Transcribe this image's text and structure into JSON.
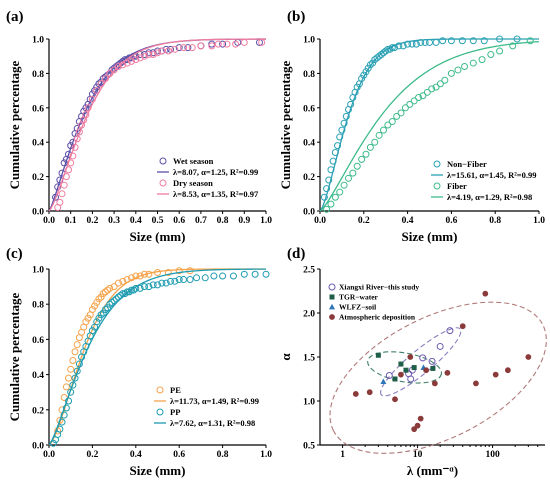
{
  "chart_data": [
    {
      "id": "a",
      "type": "scatter",
      "panel_label": "(a)",
      "xlabel": "Size (mm)",
      "ylabel": "Cumulative percentage",
      "xlim": [
        0,
        1.0
      ],
      "ylim": [
        0,
        1.0
      ],
      "xticks": [
        "0.0",
        "0.1",
        "0.2",
        "0.3",
        "0.4",
        "0.5",
        "0.6",
        "0.7",
        "0.8",
        "0.9",
        "1.0"
      ],
      "yticks": [
        "0.0",
        "0.2",
        "0.4",
        "0.6",
        "0.8",
        "1.0"
      ],
      "legend_position": "bottom-right",
      "series": [
        {
          "name": "Wet season",
          "marker": "circle-open",
          "color": "#5b4fa8",
          "fit_label": "λ=8.07, α=1.25, R²=0.99",
          "lambda": 8.07,
          "alpha": 1.25,
          "x": [
            0.03,
            0.04,
            0.05,
            0.06,
            0.07,
            0.08,
            0.09,
            0.1,
            0.11,
            0.12,
            0.13,
            0.14,
            0.15,
            0.16,
            0.17,
            0.18,
            0.19,
            0.2,
            0.21,
            0.22,
            0.23,
            0.24,
            0.25,
            0.26,
            0.27,
            0.28,
            0.29,
            0.3,
            0.31,
            0.32,
            0.33,
            0.34,
            0.35,
            0.36,
            0.37,
            0.38,
            0.39,
            0.4,
            0.42,
            0.44,
            0.46,
            0.48,
            0.5,
            0.52,
            0.54,
            0.56,
            0.6,
            0.64,
            0.7,
            0.75,
            0.8,
            0.87,
            0.97
          ],
          "y": [
            0.08,
            0.14,
            0.18,
            0.22,
            0.28,
            0.3,
            0.33,
            0.38,
            0.4,
            0.45,
            0.48,
            0.52,
            0.55,
            0.58,
            0.6,
            0.62,
            0.65,
            0.68,
            0.7,
            0.72,
            0.74,
            0.75,
            0.77,
            0.78,
            0.79,
            0.8,
            0.82,
            0.83,
            0.84,
            0.85,
            0.86,
            0.87,
            0.88,
            0.88,
            0.89,
            0.89,
            0.9,
            0.9,
            0.91,
            0.91,
            0.92,
            0.92,
            0.93,
            0.93,
            0.94,
            0.94,
            0.95,
            0.95,
            0.96,
            0.97,
            0.97,
            0.98,
            0.98
          ]
        },
        {
          "name": "Dry season",
          "marker": "circle-open",
          "color": "#f07ca0",
          "fit_label": "λ=8.53, α=1.35, R²=0.97",
          "lambda": 8.53,
          "alpha": 1.35,
          "x": [
            0.04,
            0.05,
            0.06,
            0.07,
            0.08,
            0.09,
            0.1,
            0.11,
            0.12,
            0.13,
            0.14,
            0.15,
            0.16,
            0.17,
            0.18,
            0.2,
            0.22,
            0.24,
            0.26,
            0.28,
            0.3,
            0.32,
            0.34,
            0.36,
            0.38,
            0.4,
            0.42,
            0.44,
            0.46,
            0.48,
            0.5,
            0.52,
            0.55,
            0.58,
            0.62,
            0.66,
            0.7,
            0.75,
            0.78,
            0.82,
            0.86,
            0.9,
            0.98
          ],
          "y": [
            0.02,
            0.05,
            0.1,
            0.15,
            0.2,
            0.24,
            0.28,
            0.32,
            0.37,
            0.42,
            0.46,
            0.5,
            0.53,
            0.56,
            0.6,
            0.65,
            0.7,
            0.74,
            0.77,
            0.8,
            0.82,
            0.84,
            0.85,
            0.86,
            0.87,
            0.88,
            0.89,
            0.9,
            0.91,
            0.91,
            0.92,
            0.93,
            0.93,
            0.94,
            0.95,
            0.95,
            0.96,
            0.96,
            0.97,
            0.97,
            0.97,
            0.98,
            0.98
          ]
        }
      ]
    },
    {
      "id": "b",
      "type": "scatter",
      "panel_label": "(b)",
      "xlabel": "Size (mm)",
      "ylabel": "Cumulative percentage",
      "xlim": [
        0,
        1.0
      ],
      "ylim": [
        0,
        1.0
      ],
      "xticks": [
        "0.0",
        "0.2",
        "0.4",
        "0.6",
        "0.8",
        "1.0"
      ],
      "yticks": [
        "0.0",
        "0.2",
        "0.4",
        "0.6",
        "0.8",
        "1.0"
      ],
      "legend_position": "bottom-right",
      "series": [
        {
          "name": "Non−Fiber",
          "marker": "circle-open",
          "color": "#2aa0b4",
          "fit_label": "λ=15.61, α=1.45, R²=0.99",
          "lambda": 15.61,
          "alpha": 1.45,
          "x": [
            0.02,
            0.03,
            0.04,
            0.05,
            0.06,
            0.07,
            0.08,
            0.09,
            0.1,
            0.11,
            0.12,
            0.13,
            0.14,
            0.15,
            0.16,
            0.17,
            0.18,
            0.19,
            0.2,
            0.21,
            0.22,
            0.23,
            0.24,
            0.25,
            0.26,
            0.27,
            0.28,
            0.29,
            0.3,
            0.31,
            0.32,
            0.33,
            0.34,
            0.36,
            0.38,
            0.4,
            0.42,
            0.44,
            0.46,
            0.48,
            0.5,
            0.53,
            0.56,
            0.6,
            0.65,
            0.7,
            0.75,
            0.82,
            0.9
          ],
          "y": [
            0.08,
            0.13,
            0.18,
            0.24,
            0.29,
            0.34,
            0.38,
            0.43,
            0.47,
            0.51,
            0.55,
            0.59,
            0.62,
            0.66,
            0.69,
            0.72,
            0.74,
            0.77,
            0.79,
            0.81,
            0.83,
            0.85,
            0.86,
            0.88,
            0.89,
            0.9,
            0.91,
            0.92,
            0.93,
            0.94,
            0.94,
            0.95,
            0.95,
            0.96,
            0.96,
            0.97,
            0.97,
            0.97,
            0.98,
            0.98,
            0.98,
            0.98,
            0.99,
            0.99,
            0.99,
            0.99,
            0.99,
            1.0,
            1.0
          ]
        },
        {
          "name": "Fiber",
          "marker": "circle-open",
          "color": "#3dbb8a",
          "fit_label": "λ=4.19, α=1.29, R²=0.98",
          "lambda": 4.19,
          "alpha": 1.29,
          "x": [
            0.03,
            0.05,
            0.07,
            0.09,
            0.11,
            0.13,
            0.15,
            0.17,
            0.19,
            0.21,
            0.23,
            0.25,
            0.27,
            0.29,
            0.31,
            0.33,
            0.35,
            0.37,
            0.39,
            0.41,
            0.43,
            0.45,
            0.47,
            0.49,
            0.51,
            0.53,
            0.55,
            0.57,
            0.6,
            0.63,
            0.66,
            0.7,
            0.74,
            0.78,
            0.82,
            0.88,
            0.96
          ],
          "y": [
            0.01,
            0.04,
            0.08,
            0.11,
            0.15,
            0.19,
            0.22,
            0.26,
            0.3,
            0.33,
            0.37,
            0.4,
            0.44,
            0.47,
            0.5,
            0.52,
            0.55,
            0.57,
            0.6,
            0.62,
            0.64,
            0.66,
            0.67,
            0.69,
            0.71,
            0.72,
            0.74,
            0.76,
            0.8,
            0.82,
            0.84,
            0.86,
            0.88,
            0.91,
            0.93,
            0.96,
            0.99
          ]
        }
      ]
    },
    {
      "id": "c",
      "type": "scatter",
      "panel_label": "(c)",
      "xlabel": "Size (mm)",
      "ylabel": "Cumulative percentage",
      "xlim": [
        0,
        1.0
      ],
      "ylim": [
        0,
        1.0
      ],
      "xticks": [
        "0.0",
        "0.2",
        "0.4",
        "0.6",
        "0.8",
        "1.0"
      ],
      "yticks": [
        "0.0",
        "0.2",
        "0.4",
        "0.6",
        "0.8",
        "1.0"
      ],
      "legend_position": "bottom-right",
      "series": [
        {
          "name": "PE",
          "marker": "circle-open",
          "color": "#f5a34a",
          "fit_label": "λ=11.73, α=1.49, R²=0.99",
          "lambda": 11.73,
          "alpha": 1.49,
          "x": [
            0.04,
            0.05,
            0.06,
            0.07,
            0.08,
            0.09,
            0.1,
            0.11,
            0.12,
            0.13,
            0.14,
            0.15,
            0.16,
            0.17,
            0.18,
            0.19,
            0.2,
            0.21,
            0.22,
            0.23,
            0.24,
            0.25,
            0.26,
            0.27,
            0.28,
            0.3,
            0.32,
            0.34,
            0.36,
            0.38,
            0.4,
            0.42,
            0.44,
            0.46,
            0.5,
            0.55,
            0.6,
            0.65
          ],
          "y": [
            0.08,
            0.14,
            0.2,
            0.27,
            0.33,
            0.38,
            0.43,
            0.48,
            0.53,
            0.57,
            0.61,
            0.64,
            0.67,
            0.7,
            0.72,
            0.74,
            0.77,
            0.79,
            0.81,
            0.83,
            0.84,
            0.86,
            0.87,
            0.88,
            0.89,
            0.9,
            0.92,
            0.93,
            0.94,
            0.95,
            0.96,
            0.96,
            0.97,
            0.97,
            0.98,
            0.98,
            0.99,
            0.99
          ]
        },
        {
          "name": "PP",
          "marker": "circle-open",
          "color": "#1e9cb0",
          "fit_label": "λ=7.62, α=1.31, R²=0.98",
          "lambda": 7.62,
          "alpha": 1.31,
          "x": [
            0.02,
            0.03,
            0.04,
            0.05,
            0.06,
            0.07,
            0.08,
            0.09,
            0.1,
            0.11,
            0.12,
            0.13,
            0.14,
            0.15,
            0.16,
            0.17,
            0.18,
            0.19,
            0.2,
            0.21,
            0.22,
            0.23,
            0.24,
            0.25,
            0.26,
            0.27,
            0.28,
            0.29,
            0.3,
            0.31,
            0.32,
            0.33,
            0.34,
            0.35,
            0.36,
            0.37,
            0.38,
            0.39,
            0.4,
            0.42,
            0.44,
            0.46,
            0.48,
            0.5,
            0.52,
            0.54,
            0.56,
            0.58,
            0.6,
            0.62,
            0.65,
            0.68,
            0.72,
            0.76,
            0.8,
            0.85,
            0.9,
            0.95,
            1.0
          ],
          "y": [
            0.01,
            0.03,
            0.06,
            0.09,
            0.13,
            0.17,
            0.21,
            0.25,
            0.3,
            0.34,
            0.38,
            0.42,
            0.46,
            0.5,
            0.53,
            0.56,
            0.59,
            0.62,
            0.65,
            0.67,
            0.7,
            0.72,
            0.74,
            0.75,
            0.77,
            0.78,
            0.8,
            0.81,
            0.82,
            0.83,
            0.84,
            0.85,
            0.86,
            0.86,
            0.87,
            0.87,
            0.88,
            0.88,
            0.89,
            0.89,
            0.9,
            0.9,
            0.91,
            0.91,
            0.92,
            0.92,
            0.93,
            0.93,
            0.94,
            0.94,
            0.94,
            0.95,
            0.95,
            0.96,
            0.96,
            0.96,
            0.97,
            0.97,
            0.97
          ]
        }
      ]
    },
    {
      "id": "d",
      "type": "scatter",
      "panel_label": "(d)",
      "xlabel": "λ (mm⁻ᵅ)",
      "ylabel": "α",
      "x_scale": "log",
      "xlim": [
        0.5,
        500
      ],
      "ylim": [
        0.5,
        2.5
      ],
      "xticks": [
        "1",
        "10",
        "100"
      ],
      "x_tick_values": [
        1,
        10,
        100
      ],
      "yticks": [
        "0.5",
        "1.0",
        "1.5",
        "2.0",
        "2.5"
      ],
      "legend_position": "top-left",
      "series": [
        {
          "name": "Xiangxi River−this study",
          "marker": "circle-open",
          "color": "#6d5ab0",
          "x": [
            7.6,
            8.1,
            8.5,
            11.7,
            15.6,
            27.0,
            20.0,
            4.2
          ],
          "y": [
            1.31,
            1.25,
            1.35,
            1.49,
            1.45,
            1.8,
            1.62,
            1.29
          ]
        },
        {
          "name": "TGR−water",
          "marker": "square",
          "color": "#1f5f4a",
          "x": [
            3.0,
            5.0,
            6.0,
            7.0,
            9.0,
            16.0
          ],
          "y": [
            1.52,
            1.25,
            1.42,
            1.35,
            1.38,
            1.37
          ]
        },
        {
          "name": "WLFZ−soil",
          "marker": "triangle",
          "color": "#2e76b8",
          "x": [
            3.5,
            12.0
          ],
          "y": [
            1.22,
            1.38
          ]
        },
        {
          "name": "Atmospheric deposition",
          "marker": "circle-filled",
          "color": "#8b3a3a",
          "x": [
            1.5,
            2.3,
            5.0,
            6.0,
            8.0,
            9.0,
            10.0,
            11.0,
            13.0,
            17.0,
            25.0,
            40.0,
            60.0,
            80.0,
            110.0,
            160.0,
            300.0
          ],
          "y": [
            1.08,
            1.1,
            1.02,
            1.3,
            1.5,
            0.68,
            0.72,
            0.8,
            1.35,
            1.2,
            1.32,
            1.85,
            1.2,
            2.22,
            1.3,
            1.35,
            1.5
          ]
        }
      ]
    }
  ]
}
